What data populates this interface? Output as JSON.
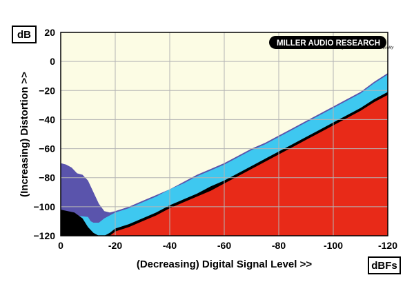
{
  "chart_data": {
    "type": "area",
    "x_reversed": true,
    "xlim": [
      0,
      -120
    ],
    "ylim": [
      -120,
      20
    ],
    "xticks": [
      0,
      -20,
      -40,
      -60,
      -80,
      -100,
      -120
    ],
    "yticks": [
      20,
      0,
      -20,
      -40,
      -60,
      -80,
      -100,
      -120
    ],
    "xticks_labels": [
      "0",
      "-20",
      "-40",
      "-60",
      "-80",
      "-100",
      "-120"
    ],
    "yticks_labels": [
      "20",
      "0",
      "−20",
      "−40",
      "−60",
      "−80",
      "−100",
      "−120"
    ],
    "xlabel": "(Decreasing) Digital Signal Level >>",
    "ylabel": "(Increasing) Distortion >>",
    "x_unit": "dBFs",
    "y_unit": "dB",
    "grid": true,
    "logo": {
      "name": "MILLER AUDIO RESEARCH",
      "tagline": "setting the measure of sound quality"
    },
    "colors": {
      "background": "#fcfce4",
      "purple": "#5a54ac",
      "cyan": "#3ec8f0",
      "red": "#e82a18",
      "black": "#000000",
      "grid": "#b4b4b4"
    },
    "series": [
      {
        "color": "#5a54ac",
        "x": [
          0,
          -2,
          -3,
          -4,
          -5,
          -6,
          -8,
          -10,
          -12,
          -14,
          -16,
          -18,
          -20,
          -25,
          -30,
          -35,
          -40,
          -45,
          -50,
          -55,
          -60,
          -65,
          -70,
          -75,
          -80,
          -85,
          -90,
          -95,
          -100,
          -105,
          -110,
          -115,
          -120
        ],
        "y": [
          -70,
          -71,
          -72,
          -73,
          -75,
          -77,
          -78,
          -82,
          -90,
          -98,
          -103,
          -104,
          -103,
          -100,
          -96,
          -92,
          -88,
          -83,
          -78,
          -74,
          -70,
          -65,
          -60,
          -56,
          -51,
          -46,
          -41,
          -36,
          -31,
          -26,
          -21,
          -14,
          -8
        ]
      },
      {
        "color": "#3ec8f0",
        "x": [
          0,
          -5,
          -10,
          -11,
          -12,
          -14,
          -16,
          -18,
          -20,
          -25,
          -30,
          -35,
          -40,
          -45,
          -50,
          -55,
          -60,
          -65,
          -70,
          -75,
          -80,
          -85,
          -90,
          -95,
          -100,
          -105,
          -110,
          -115,
          -120
        ],
        "y": [
          -104,
          -106,
          -107,
          -110,
          -111,
          -111,
          -108,
          -106,
          -104,
          -101,
          -97,
          -93,
          -88,
          -84,
          -79,
          -75,
          -71,
          -66,
          -61,
          -57,
          -52,
          -47,
          -42,
          -37,
          -32,
          -27,
          -22,
          -15,
          -9
        ]
      },
      {
        "color": "#000000",
        "x": [
          0,
          -5,
          -8,
          -10,
          -12,
          -14,
          -16,
          -18,
          -20,
          -25,
          -30,
          -35,
          -40,
          -45,
          -50,
          -55,
          -60,
          -65,
          -70,
          -75,
          -80,
          -85,
          -90,
          -95,
          -100,
          -105,
          -110,
          -115,
          -120
        ],
        "y": [
          -102,
          -104,
          -108,
          -114,
          -118,
          -120,
          -120,
          -118,
          -115,
          -112,
          -108,
          -104,
          -99,
          -95,
          -91,
          -86,
          -82,
          -77,
          -72,
          -67,
          -62,
          -57,
          -52,
          -47,
          -42,
          -37,
          -32,
          -26,
          -21
        ]
      },
      {
        "color": "#e82a18",
        "x": [
          0,
          -5,
          -8,
          -10,
          -12,
          -14,
          -16,
          -18,
          -20,
          -25,
          -30,
          -35,
          -40,
          -45,
          -50,
          -55,
          -60,
          -65,
          -70,
          -75,
          -80,
          -85,
          -90,
          -95,
          -100,
          -105,
          -110,
          -115,
          -120
        ],
        "y": [
          -120,
          -120,
          -120,
          -120,
          -120,
          -120,
          -120,
          -120,
          -117,
          -114,
          -110,
          -106,
          -101,
          -97,
          -93,
          -89,
          -84,
          -79,
          -74,
          -69,
          -64,
          -59,
          -54,
          -49,
          -44,
          -39,
          -34,
          -28,
          -23
        ]
      }
    ]
  }
}
